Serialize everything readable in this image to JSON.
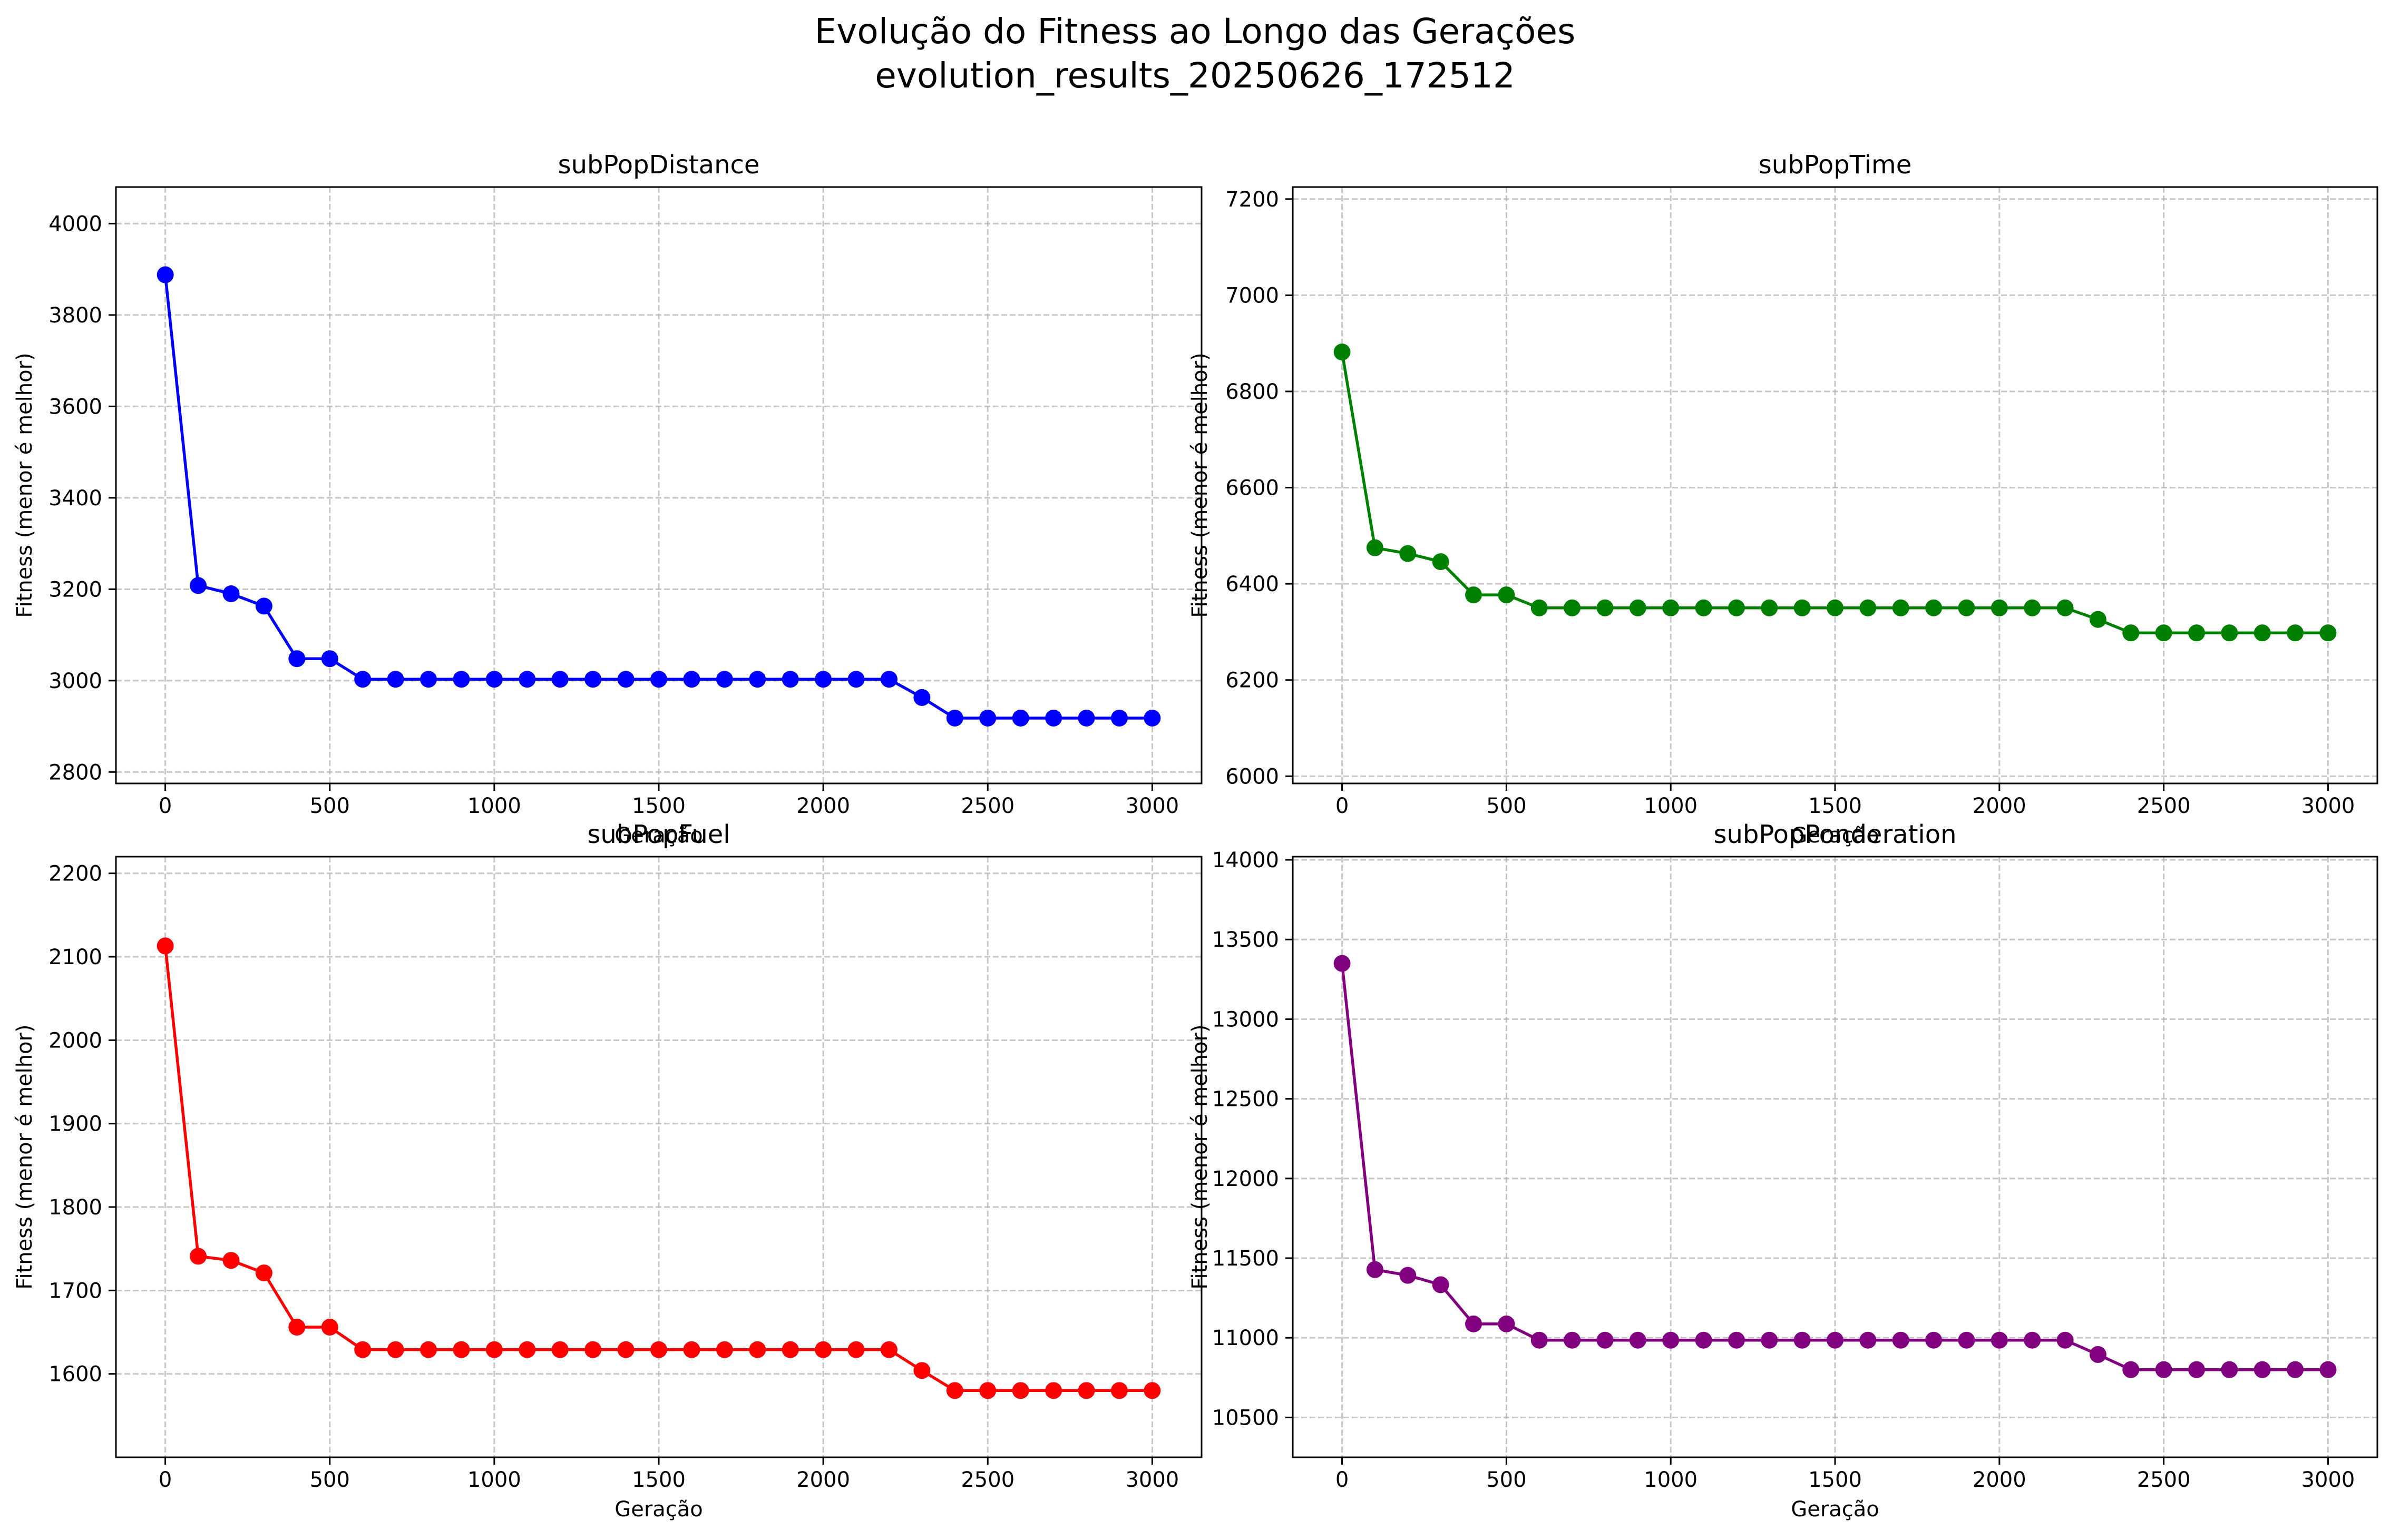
{
  "figure": {
    "title_line1": "Evolução do Fitness ao Longo das Gerações",
    "title_line2": "evolution_results_20250626_172512"
  },
  "chart_data": [
    {
      "type": "line",
      "title": "subPopDistance",
      "xlabel": "Geração",
      "ylabel": "Fitness (menor é melhor)",
      "color": "#0000ff",
      "xlim": [
        -150,
        3150
      ],
      "ylim": [
        2775,
        4080
      ],
      "xticks": [
        0,
        500,
        1000,
        1500,
        2000,
        2500,
        3000
      ],
      "yticks": [
        2800,
        3000,
        3200,
        3400,
        3600,
        3800,
        4000
      ],
      "grid": true,
      "marker": "circle",
      "x": [
        0,
        100,
        200,
        300,
        400,
        500,
        600,
        700,
        800,
        900,
        1000,
        1100,
        1200,
        1300,
        1400,
        1500,
        1600,
        1700,
        1800,
        1900,
        2000,
        2100,
        2200,
        2300,
        2400,
        2500,
        2600,
        2700,
        2800,
        2900,
        3000
      ],
      "y": [
        3888,
        3208,
        3190,
        3163,
        3048,
        3048,
        3003,
        3003,
        3003,
        3003,
        3003,
        3003,
        3003,
        3003,
        3003,
        3003,
        3003,
        3003,
        3003,
        3003,
        3003,
        3003,
        3003,
        2963,
        2918,
        2918,
        2918,
        2918,
        2918,
        2918,
        2918
      ]
    },
    {
      "type": "line",
      "title": "subPopTime",
      "xlabel": "Geração",
      "ylabel": "Fitness (menor é melhor)",
      "color": "#008000",
      "xlim": [
        -150,
        3150
      ],
      "ylim": [
        5985,
        7225
      ],
      "xticks": [
        0,
        500,
        1000,
        1500,
        2000,
        2500,
        3000
      ],
      "yticks": [
        6000,
        6200,
        6400,
        6600,
        6800,
        7000,
        7200
      ],
      "grid": true,
      "marker": "circle",
      "x": [
        0,
        100,
        200,
        300,
        400,
        500,
        600,
        700,
        800,
        900,
        1000,
        1100,
        1200,
        1300,
        1400,
        1500,
        1600,
        1700,
        1800,
        1900,
        2000,
        2100,
        2200,
        2300,
        2400,
        2500,
        2600,
        2700,
        2800,
        2900,
        3000
      ],
      "y": [
        6882,
        6475,
        6463,
        6446,
        6377,
        6377,
        6350,
        6350,
        6350,
        6350,
        6350,
        6350,
        6350,
        6350,
        6350,
        6350,
        6350,
        6350,
        6350,
        6350,
        6350,
        6350,
        6350,
        6326,
        6298,
        6298,
        6298,
        6298,
        6298,
        6298,
        6298
      ]
    },
    {
      "type": "line",
      "title": "subPopFuel",
      "xlabel": "Geração",
      "ylabel": "Fitness (menor é melhor)",
      "color": "#ff0000",
      "xlim": [
        -150,
        3150
      ],
      "ylim": [
        1500,
        2220
      ],
      "xticks": [
        0,
        500,
        1000,
        1500,
        2000,
        2500,
        3000
      ],
      "yticks": [
        1600,
        1700,
        1800,
        1900,
        2000,
        2100,
        2200
      ],
      "grid": true,
      "marker": "circle",
      "x": [
        0,
        100,
        200,
        300,
        400,
        500,
        600,
        700,
        800,
        900,
        1000,
        1100,
        1200,
        1300,
        1400,
        1500,
        1600,
        1700,
        1800,
        1900,
        2000,
        2100,
        2200,
        2300,
        2400,
        2500,
        2600,
        2700,
        2800,
        2900,
        3000
      ],
      "y": [
        2113,
        1741,
        1736,
        1721,
        1656,
        1656,
        1629,
        1629,
        1629,
        1629,
        1629,
        1629,
        1629,
        1629,
        1629,
        1629,
        1629,
        1629,
        1629,
        1629,
        1629,
        1629,
        1629,
        1604,
        1580,
        1580,
        1580,
        1580,
        1580,
        1580,
        1580
      ]
    },
    {
      "type": "line",
      "title": "subPopPonderation",
      "xlabel": "Geração",
      "ylabel": "Fitness (menor é melhor)",
      "color": "#800080",
      "xlim": [
        -150,
        3150
      ],
      "ylim": [
        10250,
        14020
      ],
      "xticks": [
        0,
        500,
        1000,
        1500,
        2000,
        2500,
        3000
      ],
      "yticks": [
        10500,
        11000,
        11500,
        12000,
        12500,
        13000,
        13500,
        14000
      ],
      "grid": true,
      "marker": "circle",
      "x": [
        0,
        100,
        200,
        300,
        400,
        500,
        600,
        700,
        800,
        900,
        1000,
        1100,
        1200,
        1300,
        1400,
        1500,
        1600,
        1700,
        1800,
        1900,
        2000,
        2100,
        2200,
        2300,
        2400,
        2500,
        2600,
        2700,
        2800,
        2900,
        3000
      ],
      "y": [
        13350,
        11428,
        11392,
        11333,
        11087,
        11087,
        10985,
        10985,
        10985,
        10985,
        10985,
        10985,
        10985,
        10985,
        10985,
        10985,
        10985,
        10985,
        10985,
        10985,
        10985,
        10985,
        10985,
        10895,
        10800,
        10800,
        10800,
        10800,
        10800,
        10800,
        10800
      ]
    }
  ]
}
